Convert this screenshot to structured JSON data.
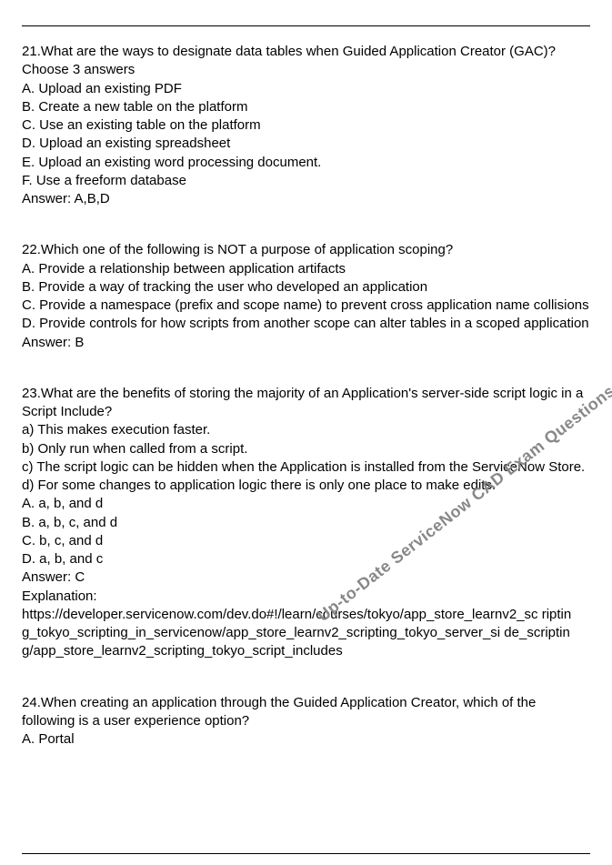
{
  "watermark_text": "Up-to-Date ServiceNow CAD Exam Questions To Help You Pass CAD Exam",
  "watermark_style": {
    "color": "#888888",
    "fontsize_pt": 14,
    "rotation_deg": -38
  },
  "text_color": "#000000",
  "background_color": "#ffffff",
  "rule_color": "#000000",
  "font_family": "Arial",
  "questions": [
    {
      "number": "21",
      "prompt": "What are the ways to designate data tables when Guided Application Creator (GAC)? Choose 3 answers",
      "options": [
        "A. Upload an existing PDF",
        "B. Create a new table on the platform",
        "C. Use an existing table on the platform",
        "D. Upload an existing spreadsheet",
        "E. Upload an existing word processing document.",
        "F. Use a freeform database"
      ],
      "answer_label": "Answer:",
      "answer": "A,B,D"
    },
    {
      "number": "22",
      "prompt": "Which one of the following is NOT a purpose of application scoping?",
      "options": [
        "A. Provide a relationship between application artifacts",
        "B. Provide a way of tracking the user who developed an application",
        "C. Provide a namespace (prefix and scope name) to prevent cross application name collisions",
        "D. Provide controls for how scripts from another scope can alter tables in a scoped application"
      ],
      "answer_label": "Answer:",
      "answer": "B"
    },
    {
      "number": "23",
      "prompt": "What are the benefits of storing the majority of an Application's server-side script logic in a Script Include?",
      "sub_options": [
        "a) This makes execution faster.",
        "b) Only run when called from a script.",
        "c) The script logic can be hidden when the Application is installed from the ServiceNow Store.",
        "d) For some changes to application logic there is only one place to make edits."
      ],
      "options": [
        "A. a, b, and d",
        "B. a, b, c, and d",
        "C. b, c, and d",
        "D. a, b, and c"
      ],
      "answer_label": "Answer:",
      "answer": "C",
      "explanation_label": "Explanation:",
      "explanation": "https://developer.servicenow.com/dev.do#!/learn/courses/tokyo/app_store_learnv2_sc riptin g_tokyo_scripting_in_servicenow/app_store_learnv2_scripting_tokyo_server_si de_scriptin g/app_store_learnv2_scripting_tokyo_script_includes"
    },
    {
      "number": "24",
      "prompt": "When creating an application through the Guided Application Creator, which of the following is a user experience option?",
      "options": [
        "A. Portal"
      ]
    }
  ]
}
